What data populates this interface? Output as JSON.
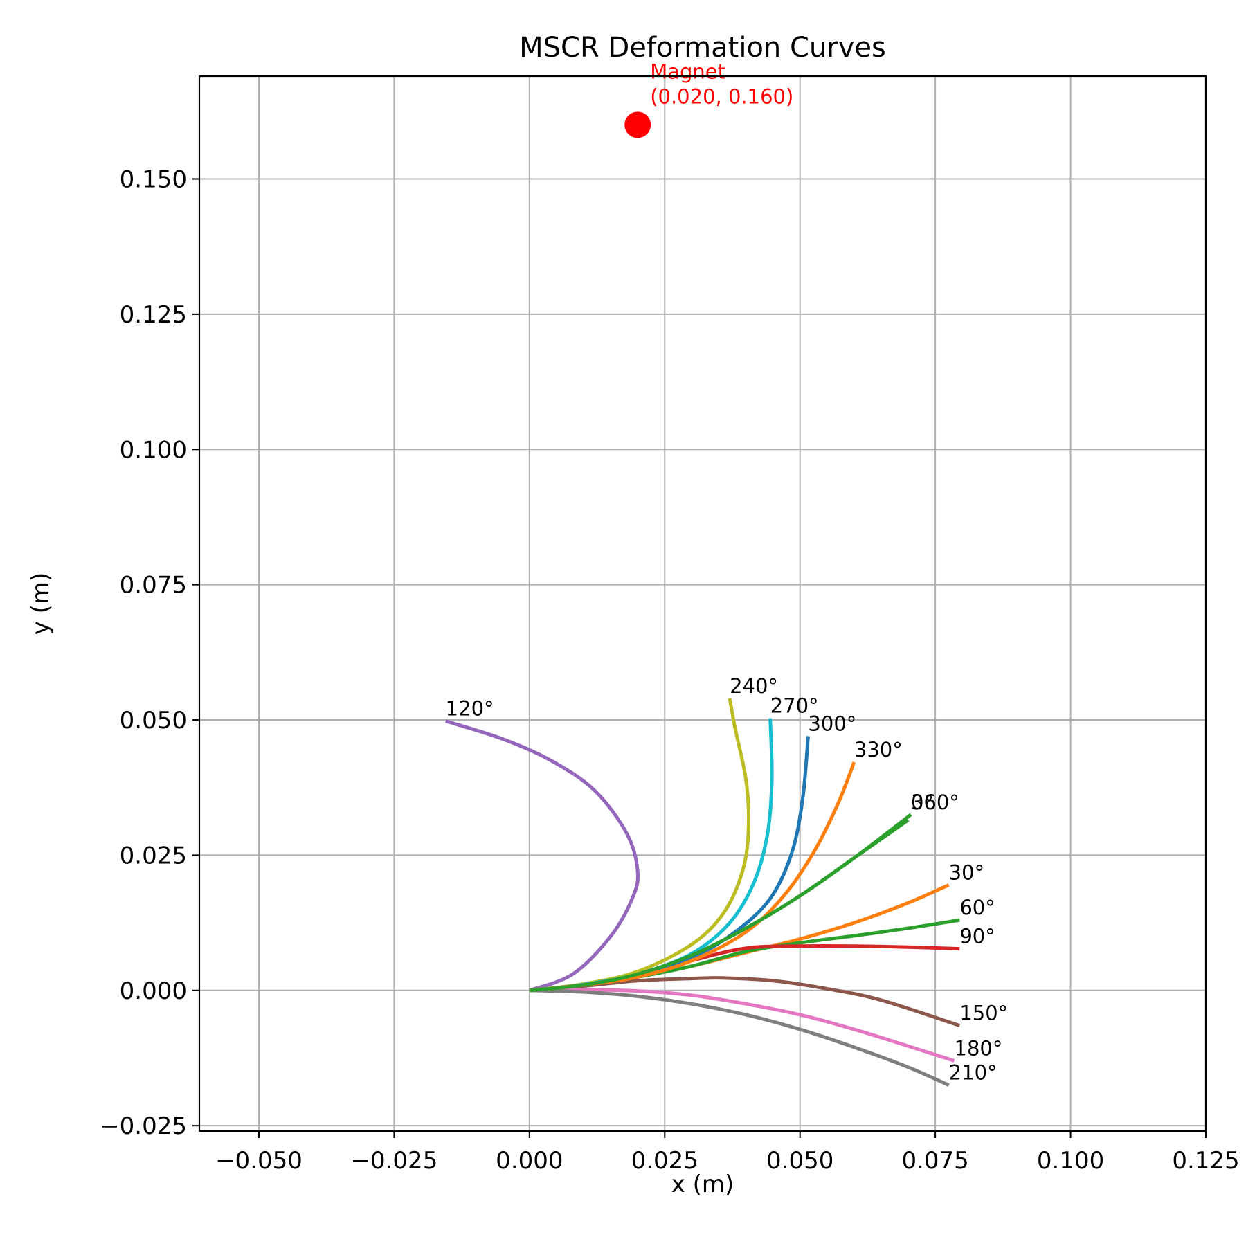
{
  "chart_data": {
    "type": "line",
    "title": "MSCR Deformation Curves",
    "xlabel": "x (m)",
    "ylabel": "y (m)",
    "xlim": [
      -0.061,
      0.125
    ],
    "ylim": [
      -0.026,
      0.169
    ],
    "xticks": [
      -0.05,
      -0.025,
      0.0,
      0.025,
      0.05,
      0.075,
      0.1,
      0.125
    ],
    "xtick_labels": [
      "−0.050",
      "−0.025",
      "0.000",
      "0.025",
      "0.050",
      "0.075",
      "0.100",
      "0.125"
    ],
    "yticks": [
      -0.025,
      0.0,
      0.025,
      0.05,
      0.075,
      0.1,
      0.125,
      0.15
    ],
    "ytick_labels": [
      "−0.025",
      "0.000",
      "0.025",
      "0.050",
      "0.075",
      "0.100",
      "0.125",
      "0.150"
    ],
    "grid": true,
    "magnet": {
      "x": 0.02,
      "y": 0.16,
      "color": "#ff0000",
      "label_line1": "Magnet",
      "label_line2": "(0.020, 0.160)"
    },
    "series": [
      {
        "name": "0°",
        "color": "#2ca02c",
        "x": [
          0.0,
          0.01,
          0.02,
          0.03,
          0.04,
          0.05,
          0.06,
          0.07
        ],
        "y": [
          0.0,
          0.001,
          0.003,
          0.0065,
          0.0115,
          0.0175,
          0.0245,
          0.0315
        ]
      },
      {
        "name": "30°",
        "color": "#ff7f0e",
        "x": [
          0.0,
          0.01,
          0.02,
          0.03,
          0.04,
          0.05,
          0.06,
          0.07,
          0.0775
        ],
        "y": [
          0.0,
          0.001,
          0.0025,
          0.0045,
          0.007,
          0.0095,
          0.0125,
          0.0162,
          0.0195
        ]
      },
      {
        "name": "60°",
        "color": "#2ca02c",
        "x": [
          0.0,
          0.01,
          0.02,
          0.03,
          0.04,
          0.05,
          0.06,
          0.07,
          0.0795
        ],
        "y": [
          0.0,
          0.001,
          0.0025,
          0.0045,
          0.0072,
          0.0088,
          0.0101,
          0.0115,
          0.013
        ]
      },
      {
        "name": "90°",
        "color": "#d62728",
        "x": [
          0.0,
          0.01,
          0.02,
          0.03,
          0.04,
          0.05,
          0.06,
          0.07,
          0.0795
        ],
        "y": [
          0.0,
          0.001,
          0.0025,
          0.0055,
          0.0078,
          0.0082,
          0.0082,
          0.008,
          0.0077
        ]
      },
      {
        "name": "120°",
        "color": "#9467bd",
        "x": [
          0.0,
          0.008,
          0.015,
          0.019,
          0.02,
          0.018,
          0.012,
          0.004,
          -0.005,
          -0.0155
        ],
        "y": [
          0.0,
          0.003,
          0.01,
          0.017,
          0.022,
          0.029,
          0.037,
          0.0425,
          0.0465,
          0.0498
        ]
      },
      {
        "name": "150°",
        "color": "#8c564b",
        "x": [
          0.0,
          0.01,
          0.02,
          0.03,
          0.036,
          0.045,
          0.055,
          0.065,
          0.0795
        ],
        "y": [
          0.0,
          0.0008,
          0.0018,
          0.0022,
          0.0023,
          0.0018,
          0.0003,
          -0.0018,
          -0.0065
        ]
      },
      {
        "name": "180°",
        "color": "#e377c2",
        "x": [
          0.0,
          0.01,
          0.02,
          0.03,
          0.04,
          0.05,
          0.06,
          0.07,
          0.0785
        ],
        "y": [
          0.0,
          0.0001,
          -0.0001,
          -0.0009,
          -0.0025,
          -0.0045,
          -0.0072,
          -0.0103,
          -0.013
        ]
      },
      {
        "name": "210°",
        "color": "#7f7f7f",
        "x": [
          0.0,
          0.01,
          0.02,
          0.03,
          0.04,
          0.05,
          0.06,
          0.07,
          0.0775
        ],
        "y": [
          0.0,
          -0.0003,
          -0.0011,
          -0.0025,
          -0.0045,
          -0.0072,
          -0.0105,
          -0.0142,
          -0.0175
        ]
      },
      {
        "name": "240°",
        "color": "#bcbd22",
        "x": [
          0.0,
          0.01,
          0.02,
          0.03,
          0.036,
          0.0395,
          0.0405,
          0.04,
          0.038,
          0.037
        ],
        "y": [
          0.0,
          0.0012,
          0.0035,
          0.0085,
          0.0145,
          0.0225,
          0.0305,
          0.039,
          0.0485,
          0.054
        ]
      },
      {
        "name": "270°",
        "color": "#17becf",
        "x": [
          0.0,
          0.01,
          0.02,
          0.03,
          0.037,
          0.0415,
          0.044,
          0.0448,
          0.0445
        ],
        "y": [
          0.0,
          0.0011,
          0.003,
          0.0068,
          0.0125,
          0.02,
          0.029,
          0.039,
          0.0503
        ]
      },
      {
        "name": "300°",
        "color": "#1f77b4",
        "x": [
          0.0,
          0.01,
          0.02,
          0.03,
          0.038,
          0.0445,
          0.0485,
          0.0505,
          0.0515
        ],
        "y": [
          0.0,
          0.001,
          0.0027,
          0.006,
          0.0108,
          0.017,
          0.0255,
          0.0355,
          0.047
        ]
      },
      {
        "name": "330°",
        "color": "#ff7f0e",
        "x": [
          0.0,
          0.01,
          0.02,
          0.03,
          0.04,
          0.047,
          0.0525,
          0.057,
          0.06
        ],
        "y": [
          0.0,
          0.001,
          0.0025,
          0.0055,
          0.0108,
          0.0175,
          0.0255,
          0.0345,
          0.0422
        ]
      },
      {
        "name": "360°",
        "color": "#2ca02c",
        "x": [
          0.0,
          0.01,
          0.02,
          0.03,
          0.04,
          0.05,
          0.06,
          0.0705
        ],
        "y": [
          0.0,
          0.001,
          0.003,
          0.0065,
          0.0115,
          0.0175,
          0.0245,
          0.0325
        ]
      }
    ],
    "labels": [
      {
        "text": "0°",
        "x": 0.0705,
        "y": 0.0325
      },
      {
        "text": "30°",
        "x": 0.0775,
        "y": 0.0195
      },
      {
        "text": "60°",
        "x": 0.0795,
        "y": 0.013
      },
      {
        "text": "90°",
        "x": 0.0795,
        "y": 0.0077
      },
      {
        "text": "120°",
        "x": -0.0155,
        "y": 0.0498
      },
      {
        "text": "150°",
        "x": 0.0795,
        "y": -0.0065
      },
      {
        "text": "180°",
        "x": 0.0785,
        "y": -0.013
      },
      {
        "text": "210°",
        "x": 0.0775,
        "y": -0.0175
      },
      {
        "text": "240°",
        "x": 0.037,
        "y": 0.054
      },
      {
        "text": "270°",
        "x": 0.0445,
        "y": 0.0503
      },
      {
        "text": "300°",
        "x": 0.0515,
        "y": 0.047
      },
      {
        "text": "330°",
        "x": 0.06,
        "y": 0.0422
      },
      {
        "text": "360°",
        "x": 0.0705,
        "y": 0.0325
      }
    ]
  }
}
